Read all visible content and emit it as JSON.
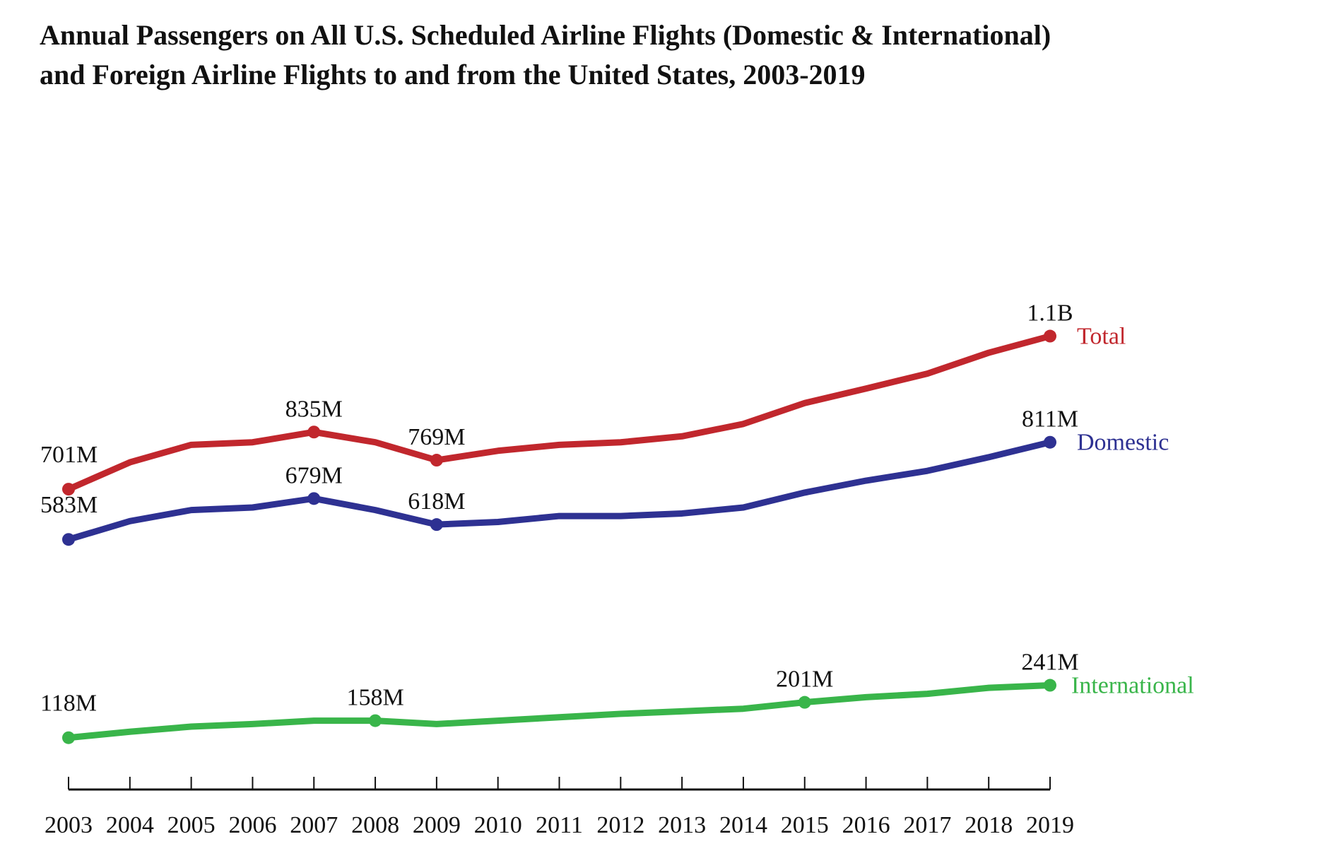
{
  "chart_data": {
    "type": "line",
    "title_lines": [
      "Annual Passengers on All U.S. Scheduled Airline Flights (Domestic & International)",
      "and Foreign Airline Flights to and from the United States, 2003-2019"
    ],
    "xlabel": "",
    "ylabel": "",
    "grid": false,
    "legend": "inline-right",
    "units": "millions of passengers",
    "x": [
      2003,
      2004,
      2005,
      2006,
      2007,
      2008,
      2009,
      2010,
      2011,
      2012,
      2013,
      2014,
      2015,
      2016,
      2017,
      2018,
      2019
    ],
    "series": [
      {
        "name": "Total",
        "color": "#c1272d",
        "values": [
          701,
          764,
          805,
          811,
          835,
          811,
          769,
          791,
          805,
          811,
          825,
          854,
          903,
          937,
          972,
          1021,
          1060
        ],
        "annotations": [
          {
            "x": 2003,
            "label": "701M"
          },
          {
            "x": 2007,
            "label": "835M"
          },
          {
            "x": 2009,
            "label": "769M"
          },
          {
            "x": 2019,
            "label": "1.1B"
          }
        ]
      },
      {
        "name": "Domestic",
        "color": "#2e3192",
        "values": [
          583,
          626,
          652,
          658,
          679,
          652,
          618,
          624,
          638,
          638,
          644,
          658,
          693,
          721,
          744,
          776,
          811
        ],
        "annotations": [
          {
            "x": 2003,
            "label": "583M"
          },
          {
            "x": 2007,
            "label": "679M"
          },
          {
            "x": 2009,
            "label": "618M"
          },
          {
            "x": 2019,
            "label": "811M"
          }
        ]
      },
      {
        "name": "International",
        "color": "#39b54a",
        "values": [
          118,
          132,
          144,
          150,
          158,
          158,
          150,
          158,
          166,
          174,
          180,
          186,
          201,
          213,
          221,
          235,
          241
        ],
        "annotations": [
          {
            "x": 2003,
            "label": "118M"
          },
          {
            "x": 2008,
            "label": "158M"
          },
          {
            "x": 2015,
            "label": "201M"
          },
          {
            "x": 2019,
            "label": "241M"
          }
        ]
      }
    ]
  }
}
